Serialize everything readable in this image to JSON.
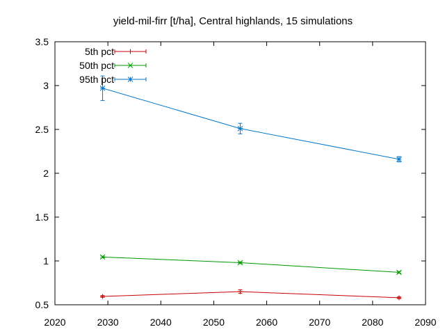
{
  "chart_data": {
    "type": "line",
    "title": "yield-mil-firr [t/ha], Central highlands, 15 simulations",
    "xlabel": "",
    "ylabel": "",
    "xlim": [
      2020,
      2090
    ],
    "ylim": [
      0.5,
      3.5
    ],
    "xticks": [
      2020,
      2030,
      2040,
      2050,
      2060,
      2070,
      2080,
      2090
    ],
    "yticks": [
      0.5,
      1,
      1.5,
      2,
      2.5,
      3,
      3.5
    ],
    "ytick_labels": [
      "0.5",
      "1",
      "1.5",
      "2",
      "2.5",
      "3",
      "3.5"
    ],
    "grid": false,
    "legend_position": "top-left",
    "x": [
      2029,
      2055,
      2085
    ],
    "series": [
      {
        "name": "5th pct",
        "color": "#cc0000",
        "marker": "plus",
        "values": [
          0.595,
          0.65,
          0.58
        ],
        "err_low": [
          0.585,
          0.63,
          0.57
        ],
        "err_high": [
          0.605,
          0.67,
          0.59
        ]
      },
      {
        "name": "50th pct",
        "color": "#009900",
        "marker": "cross",
        "values": [
          1.045,
          0.98,
          0.87
        ],
        "err_low": [
          1.035,
          0.97,
          0.86
        ],
        "err_high": [
          1.055,
          0.99,
          0.88
        ]
      },
      {
        "name": "95th pct",
        "color": "#0077cc",
        "marker": "star",
        "values": [
          2.97,
          2.51,
          2.16
        ],
        "err_low": [
          2.83,
          2.45,
          2.13
        ],
        "err_high": [
          3.11,
          2.57,
          2.19
        ]
      }
    ]
  }
}
